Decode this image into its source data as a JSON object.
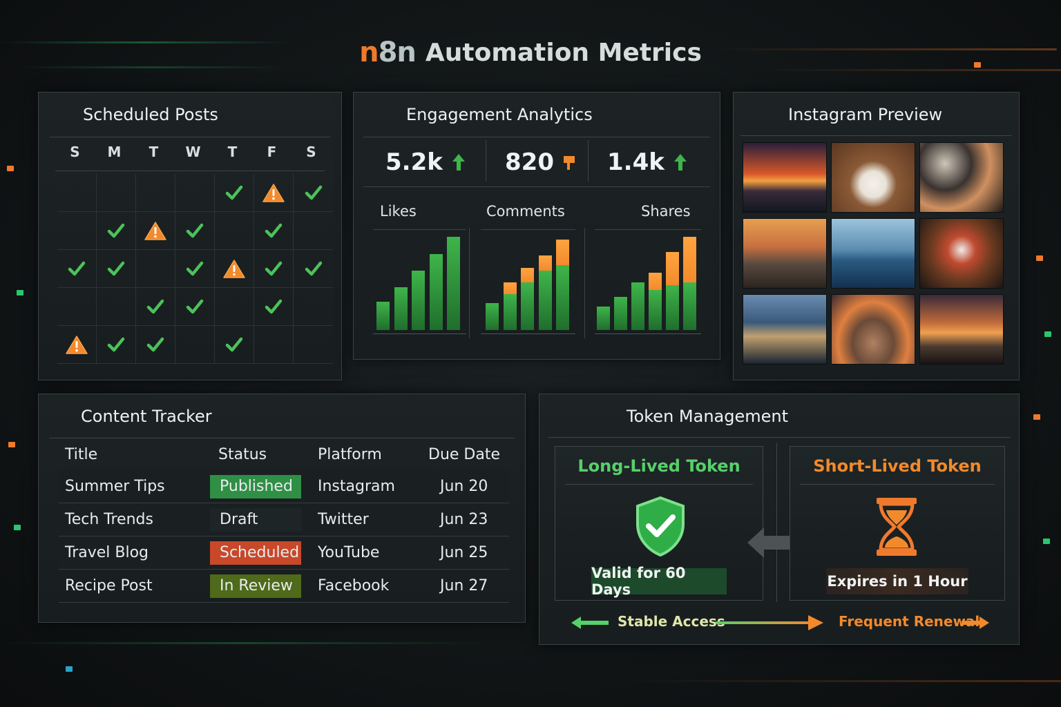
{
  "header": {
    "logo_text": {
      "n": "n",
      "eight": "8",
      "n2": "n"
    },
    "title": "Automation Metrics"
  },
  "scheduled_posts": {
    "title": "Scheduled Posts",
    "weekdays": [
      "S",
      "M",
      "T",
      "W",
      "T",
      "F",
      "S"
    ],
    "grid": [
      [
        "",
        "",
        "",
        "",
        "check",
        "warn",
        "check"
      ],
      [
        "",
        "check",
        "warn",
        "check",
        "",
        "check",
        ""
      ],
      [
        "check",
        "check",
        "",
        "check",
        "warn",
        "check",
        "check"
      ],
      [
        "",
        "",
        "check",
        "check",
        "",
        "check",
        ""
      ],
      [
        "warn",
        "check",
        "check",
        "",
        "check",
        "",
        ""
      ]
    ]
  },
  "engagement": {
    "title": "Engagement Analytics",
    "metrics": [
      {
        "value": "5.2k",
        "trend": "up"
      },
      {
        "value": "820",
        "trend": "flat"
      },
      {
        "value": "1.4k",
        "trend": "up"
      }
    ],
    "chart_data": [
      {
        "type": "bar",
        "title": "Likes",
        "categories": [
          "1",
          "2",
          "3",
          "4",
          "5"
        ],
        "series": [
          {
            "values": [
              30,
              45,
              62,
              80,
              98
            ]
          }
        ],
        "ylim": [
          0,
          100
        ]
      },
      {
        "type": "bar",
        "title": "Comments",
        "categories": [
          "1",
          "2",
          "3",
          "4",
          "5"
        ],
        "series": [
          {
            "values": [
              28,
              38,
              50,
              62,
              68
            ]
          },
          {
            "values": [
              0,
              12,
              15,
              16,
              27
            ]
          }
        ],
        "stacked": true,
        "ylim": [
          0,
          100
        ]
      },
      {
        "type": "bar",
        "title": "Shares",
        "categories": [
          "1",
          "2",
          "3",
          "4",
          "5",
          "6"
        ],
        "series": [
          {
            "values": [
              25,
              35,
              50,
              42,
              47,
              50
            ]
          },
          {
            "values": [
              0,
              0,
              0,
              18,
              35,
              48
            ]
          }
        ],
        "stacked": true,
        "ylim": [
          0,
          100
        ]
      }
    ],
    "colors": {
      "green": "#3fb54a",
      "orange": "#f28a2c"
    }
  },
  "instagram": {
    "title": "Instagram Preview",
    "tiles": [
      {
        "name": "sunset-ocean-photo"
      },
      {
        "name": "coffee-cup-photo"
      },
      {
        "name": "camera-flatlay-photo"
      },
      {
        "name": "beach-camera-photo"
      },
      {
        "name": "calm-sea-photo"
      },
      {
        "name": "camera-gear-photo"
      },
      {
        "name": "city-waterfront-photo"
      },
      {
        "name": "cat-sunset-photo"
      },
      {
        "name": "mountain-sunset-photo"
      }
    ]
  },
  "content_tracker": {
    "title": "Content Tracker",
    "columns": [
      "Title",
      "Status",
      "Platform",
      "Due Date"
    ],
    "rows": [
      {
        "title": "Summer Tips",
        "status": "Published",
        "status_color": "#2f8f45",
        "platform": "Instagram",
        "due": "Jun 20"
      },
      {
        "title": "Tech Trends",
        "status": "Draft",
        "status_color": "#1e2527",
        "platform": "Twitter",
        "due": "Jun 23"
      },
      {
        "title": "Travel Blog",
        "status": "Scheduled",
        "status_color": "#c8482a",
        "platform": "YouTube",
        "due": "Jun 25"
      },
      {
        "title": "Recipe Post",
        "status": "In Review",
        "status_color": "#4e6a1a",
        "platform": "Facebook",
        "due": "Jun 27"
      }
    ]
  },
  "token_management": {
    "title": "Token Management",
    "long_lived": {
      "title": "Long-Lived Token",
      "badge": "Valid for 60 Days",
      "color": "#57d06a"
    },
    "short_lived": {
      "title": "Short-Lived Token",
      "badge": "Expires in 1 Hour",
      "color": "#f28a2c"
    },
    "flow": {
      "left": "Stable Access",
      "right": "Frequent Renewal"
    }
  }
}
